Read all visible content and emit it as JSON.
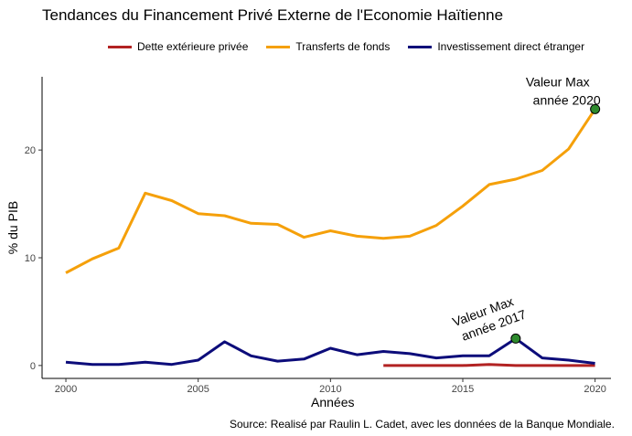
{
  "chart_data": {
    "type": "line",
    "title": "Tendances du Financement Privé Externe de l'Economie Haïtienne",
    "xlabel": "Années",
    "ylabel": "% du PIB",
    "source": "Source: Realisé par Raulin L. Cadet, avec les données de la Banque Mondiale.",
    "xlim": [
      1999.1,
      2020.6
    ],
    "ylim": [
      -1.2,
      26.8
    ],
    "x_ticks": [
      2000,
      2005,
      2010,
      2015,
      2020
    ],
    "y_ticks": [
      0,
      10,
      20
    ],
    "grid": false,
    "legend_position": "top",
    "series": [
      {
        "name": "Dette extérieure privée",
        "color": "#b22222",
        "x": [
          2012,
          2013,
          2014,
          2015,
          2016,
          2017,
          2018,
          2019,
          2020
        ],
        "y": [
          0.0,
          0.0,
          0.0,
          0.0,
          0.1,
          0.0,
          0.0,
          0.0,
          0.0
        ]
      },
      {
        "name": "Transferts de fonds",
        "color": "#f5a00a",
        "x": [
          2000,
          2001,
          2002,
          2003,
          2004,
          2005,
          2006,
          2007,
          2008,
          2009,
          2010,
          2011,
          2012,
          2013,
          2014,
          2015,
          2016,
          2017,
          2018,
          2019,
          2020
        ],
        "y": [
          8.6,
          9.9,
          10.9,
          16.0,
          15.3,
          14.1,
          13.9,
          13.2,
          13.1,
          11.9,
          12.5,
          12.0,
          11.8,
          12.0,
          13.0,
          14.8,
          16.8,
          17.3,
          18.1,
          20.1,
          23.8
        ]
      },
      {
        "name": "Investissement direct étranger",
        "color": "#0c0c7a",
        "x": [
          2000,
          2001,
          2002,
          2003,
          2004,
          2005,
          2006,
          2007,
          2008,
          2009,
          2010,
          2011,
          2012,
          2013,
          2014,
          2015,
          2016,
          2017,
          2018,
          2019,
          2020
        ],
        "y": [
          0.3,
          0.1,
          0.1,
          0.3,
          0.1,
          0.5,
          2.2,
          0.9,
          0.4,
          0.6,
          1.6,
          1.0,
          1.3,
          1.1,
          0.7,
          0.9,
          0.9,
          2.5,
          0.7,
          0.5,
          0.2
        ]
      }
    ],
    "annotations": [
      {
        "x": 2020,
        "y": 23.8,
        "line1": "Valeur Max",
        "line2": "année  2020",
        "color": "#2e8b2e"
      },
      {
        "x": 2017,
        "y": 2.5,
        "line1": "Valeur Max",
        "line2": "année  2017",
        "color": "#2e8b2e"
      }
    ]
  }
}
